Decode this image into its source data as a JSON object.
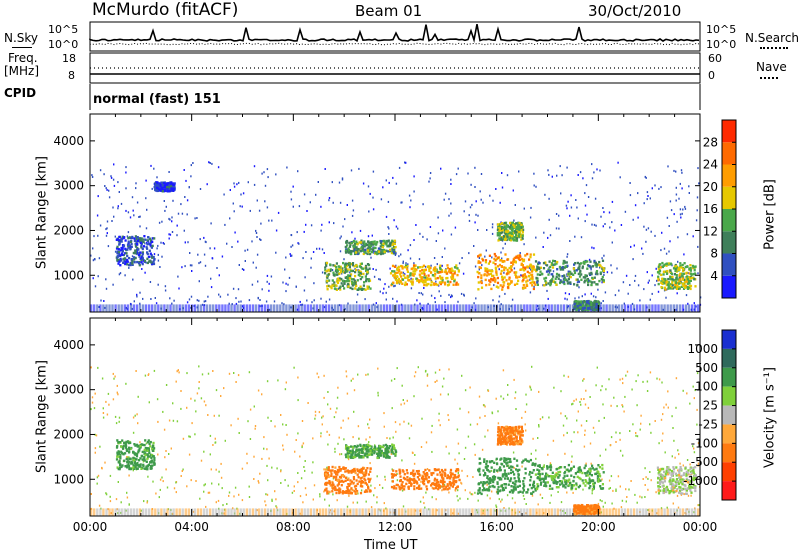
{
  "header": {
    "title": "McMurdo (fitACF)",
    "beam": "Beam 01",
    "date": "30/Oct/2010"
  },
  "top_panels": {
    "nsky_label": "N.Sky",
    "nsearch_label": "N.Search",
    "nsky_ticks": [
      "10^5",
      "10^0"
    ],
    "nsearch_ticks": [
      "10^5",
      "10^0"
    ],
    "freq_label_line1": "Freq.",
    "freq_label_line2": "[MHz]",
    "freq_ticks": [
      "18",
      "8"
    ],
    "nave_label": "Nave",
    "nave_ticks": [
      "60",
      "0"
    ],
    "cpid_label": "CPID",
    "cpid_value": "normal (fast) 151"
  },
  "chart_data": [
    {
      "type": "heatmap",
      "panel": "power",
      "ylabel": "Slant Range [km]",
      "xlabel": "",
      "ylim": [
        180,
        4600
      ],
      "yticks": [
        "1000",
        "2000",
        "3000",
        "4000"
      ],
      "colorbar_label": "Power [dB]",
      "colorbar_ticks": [
        "4",
        "8",
        "12",
        "16",
        "20",
        "24",
        "28"
      ],
      "colors": [
        "#1a1aff",
        "#3050c0",
        "#3f7f5a",
        "#4aa84a",
        "#e6c800",
        "#ff9d00",
        "#ff6a00",
        "#ff2a00"
      ],
      "patches": [
        {
          "t": [
            1.0,
            2.5
          ],
          "r": [
            1250,
            1900
          ],
          "v": 6
        },
        {
          "t": [
            2.5,
            3.3
          ],
          "r": [
            2900,
            3100
          ],
          "v": 4
        },
        {
          "t": [
            9.2,
            11.0
          ],
          "r": [
            700,
            1300
          ],
          "v": 14
        },
        {
          "t": [
            10.0,
            12.0
          ],
          "r": [
            1500,
            1800
          ],
          "v": 12
        },
        {
          "t": [
            11.8,
            14.5
          ],
          "r": [
            800,
            1250
          ],
          "v": 20
        },
        {
          "t": [
            15.2,
            17.5
          ],
          "r": [
            700,
            1500
          ],
          "v": 22
        },
        {
          "t": [
            16.0,
            17.0
          ],
          "r": [
            1800,
            2200
          ],
          "v": 14
        },
        {
          "t": [
            17.5,
            20.2
          ],
          "r": [
            800,
            1350
          ],
          "v": 12
        },
        {
          "t": [
            19.0,
            20.0
          ],
          "r": [
            250,
            450
          ],
          "v": 10
        },
        {
          "t": [
            22.3,
            23.8
          ],
          "r": [
            700,
            1300
          ],
          "v": 16
        }
      ]
    },
    {
      "type": "heatmap",
      "panel": "velocity",
      "ylabel": "Slant Range [km]",
      "xlabel": "Time UT",
      "ylim": [
        180,
        4600
      ],
      "yticks": [
        "1000",
        "2000",
        "3000",
        "4000"
      ],
      "xticks": [
        "00:00",
        "04:00",
        "08:00",
        "12:00",
        "16:00",
        "20:00",
        "00:00"
      ],
      "xlim": [
        0,
        24
      ],
      "colorbar_label": "Velocity [m s⁻¹]",
      "colorbar_ticks": [
        "1000",
        "500",
        "100",
        "25",
        "-25",
        "-100",
        "-500",
        "-1000"
      ],
      "colors": [
        "#1a2fd0",
        "#2f6a5c",
        "#3e9a4a",
        "#7fd03a",
        "#b8b8b8",
        "#ffa83a",
        "#ff7a10",
        "#ff4000",
        "#ff1a1a"
      ],
      "patches": [
        {
          "t": [
            1.0,
            2.5
          ],
          "r": [
            1250,
            1900
          ],
          "v": 200
        },
        {
          "t": [
            9.2,
            11.0
          ],
          "r": [
            700,
            1300
          ],
          "v": -200
        },
        {
          "t": [
            10.0,
            12.0
          ],
          "r": [
            1500,
            1800
          ],
          "v": 150
        },
        {
          "t": [
            11.8,
            14.5
          ],
          "r": [
            800,
            1250
          ],
          "v": -300
        },
        {
          "t": [
            15.2,
            17.5
          ],
          "r": [
            700,
            1500
          ],
          "v": 300
        },
        {
          "t": [
            16.0,
            17.0
          ],
          "r": [
            1800,
            2200
          ],
          "v": -200
        },
        {
          "t": [
            17.5,
            20.2
          ],
          "r": [
            800,
            1350
          ],
          "v": 150
        },
        {
          "t": [
            19.0,
            20.0
          ],
          "r": [
            250,
            450
          ],
          "v": -200
        },
        {
          "t": [
            22.3,
            23.8
          ],
          "r": [
            700,
            1300
          ],
          "v": 20
        }
      ]
    }
  ]
}
